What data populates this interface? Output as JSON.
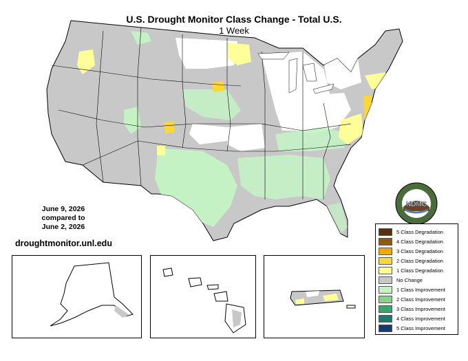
{
  "title": "U.S. Drought Monitor Class Change - Total U.S.",
  "subtitle": "1 Week",
  "date": {
    "line1": "June 9, 2026",
    "line2": "compared to",
    "line3": "June 2, 2026"
  },
  "website": "droughtmonitor.unl.edu",
  "logo": {
    "text": "NDMC",
    "ring_text": "NATIONAL DROUGHT MITIGATION CENTER · UNIVERSITY OF NEBRASKA"
  },
  "colors": {
    "no_change": "#c8c8c8",
    "degradation_1": "#ffff99",
    "degradation_2": "#fcd836",
    "improvement_1": "#c5f2c5",
    "improvement_2": "#a1d9a1",
    "land": "#ffffff",
    "border": "#000000"
  },
  "legend": [
    {
      "label": "5 Class Degradation",
      "color": "#5a2d0c"
    },
    {
      "label": "4 Class Degradation",
      "color": "#8b5a14"
    },
    {
      "label": "3 Class Degradation",
      "color": "#f7a600"
    },
    {
      "label": "2 Class Degradation",
      "color": "#fcd836"
    },
    {
      "label": "1 Class Degradation",
      "color": "#ffff99"
    },
    {
      "label": "No Change",
      "color": "#c8c8c8"
    },
    {
      "label": "1 Class Improvement",
      "color": "#c5f2c5"
    },
    {
      "label": "2 Class Improvement",
      "color": "#87d38c"
    },
    {
      "label": "3 Class Improvement",
      "color": "#3ca56b"
    },
    {
      "label": "4 Class Improvement",
      "color": "#1e7a6d"
    },
    {
      "label": "5 Class Improvement",
      "color": "#173a73"
    }
  ]
}
